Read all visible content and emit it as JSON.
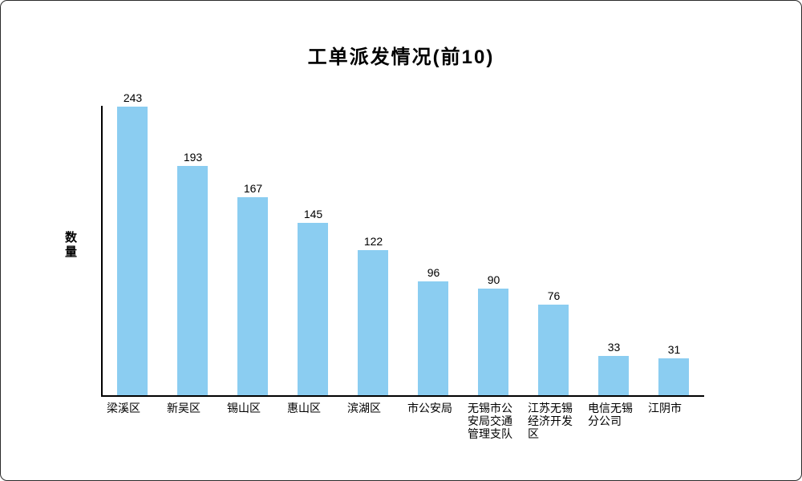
{
  "chart_data": {
    "type": "bar",
    "title": "工单派发情况(前10)",
    "xlabel": "",
    "ylabel": "数量",
    "categories": [
      "梁溪区",
      "新吴区",
      "锡山区",
      "惠山区",
      "滨湖区",
      "市公安局",
      "无锡市公安局交通管理支队",
      "江苏无锡经济开发区",
      "电信无锡分公司",
      "江阴市"
    ],
    "values": [
      243,
      193,
      167,
      145,
      122,
      96,
      90,
      76,
      33,
      31
    ],
    "ylim": [
      0,
      243
    ],
    "grid": false,
    "legend": "none",
    "value_labels_shown": true,
    "bar_color": "#8bcdf1",
    "axis_color": "#000000",
    "text_color": "#000000"
  }
}
